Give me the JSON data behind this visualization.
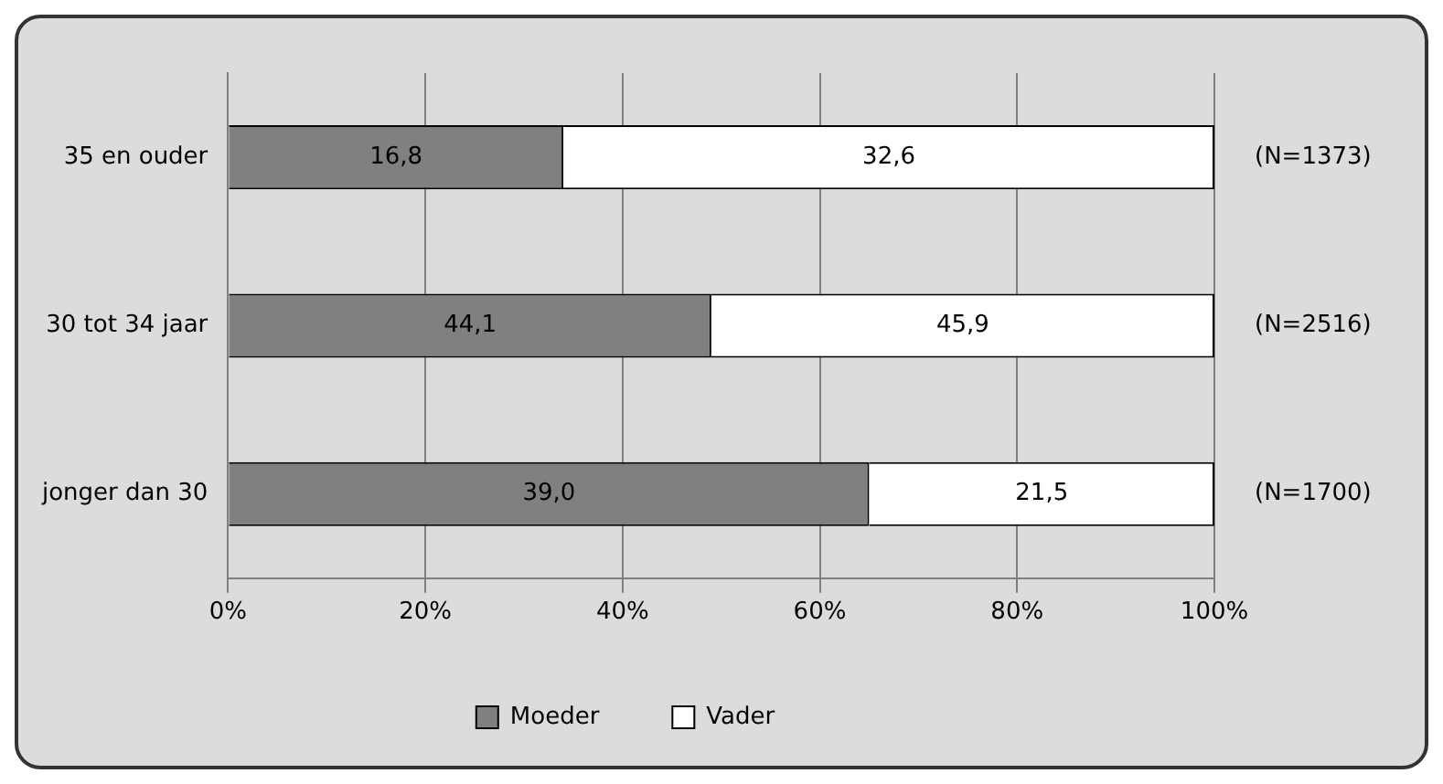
{
  "chart_data": {
    "type": "bar",
    "orientation": "horizontal",
    "stacked": true,
    "categories": [
      "35 en ouder",
      "30 tot 34 jaar",
      "jonger dan 30"
    ],
    "series": [
      {
        "name": "Moeder",
        "color": "#808080",
        "values": [
          34,
          49,
          65
        ]
      },
      {
        "name": "Vader",
        "color": "#ffffff",
        "values": [
          66,
          51,
          35
        ]
      }
    ],
    "xlim": [
      0,
      100
    ],
    "xticks": [
      {
        "value": 0,
        "label": "0%"
      },
      {
        "value": 20,
        "label": "20%"
      },
      {
        "value": 40,
        "label": "40%"
      },
      {
        "value": 60,
        "label": "60%"
      },
      {
        "value": 80,
        "label": "80%"
      },
      {
        "value": 100,
        "label": "100%"
      }
    ],
    "grid": "x",
    "legend": "bottom",
    "annotations": [
      "16,8",
      "32,6",
      "(N=1373)",
      "44,1",
      "45,9",
      "(N=2516)",
      "39,0",
      "21,5",
      "(N=1700)"
    ]
  }
}
